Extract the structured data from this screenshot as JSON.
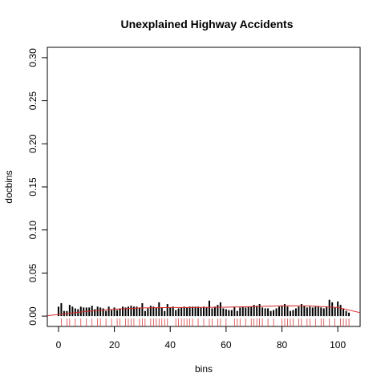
{
  "chart_data": {
    "type": "bar",
    "title": "Unexplained Highway Accidents",
    "xlabel": "bins",
    "ylabel": "docbins",
    "xlim": [
      -4,
      108
    ],
    "ylim": [
      -0.012,
      0.312
    ],
    "x_ticks": [
      0,
      20,
      40,
      60,
      80,
      100
    ],
    "y_ticks": [
      0.0,
      0.05,
      0.1,
      0.15,
      0.2,
      0.25,
      0.3
    ],
    "y_tick_labels": [
      "0.00",
      "0.05",
      "0.10",
      "0.15",
      "0.20",
      "0.25",
      "0.30"
    ],
    "grid": false,
    "bar_color": "#000000",
    "curve_color": "#d62728",
    "rug_color": "#d62728",
    "bars": {
      "x": [
        0,
        1,
        2,
        3,
        4,
        5,
        6,
        7,
        8,
        9,
        10,
        11,
        12,
        13,
        14,
        15,
        16,
        17,
        18,
        19,
        20,
        21,
        22,
        23,
        24,
        25,
        26,
        27,
        28,
        29,
        30,
        31,
        32,
        33,
        34,
        35,
        36,
        37,
        38,
        39,
        40,
        41,
        42,
        43,
        44,
        45,
        46,
        47,
        48,
        49,
        50,
        51,
        52,
        53,
        54,
        55,
        56,
        57,
        58,
        59,
        60,
        61,
        62,
        63,
        64,
        65,
        66,
        67,
        68,
        69,
        70,
        71,
        72,
        73,
        74,
        75,
        76,
        77,
        78,
        79,
        80,
        81,
        82,
        83,
        84,
        85,
        86,
        87,
        88,
        89,
        90,
        91,
        92,
        93,
        94,
        95,
        96,
        97,
        98,
        99,
        100,
        101,
        102,
        103,
        104
      ],
      "y": [
        0.011,
        0.015,
        0.006,
        0.006,
        0.013,
        0.011,
        0.009,
        0.008,
        0.011,
        0.01,
        0.01,
        0.01,
        0.012,
        0.008,
        0.011,
        0.01,
        0.009,
        0.006,
        0.011,
        0.007,
        0.01,
        0.007,
        0.009,
        0.011,
        0.01,
        0.011,
        0.012,
        0.011,
        0.011,
        0.01,
        0.015,
        0.006,
        0.009,
        0.012,
        0.011,
        0.01,
        0.016,
        0.01,
        0.006,
        0.014,
        0.01,
        0.011,
        0.007,
        0.009,
        0.01,
        0.011,
        0.01,
        0.011,
        0.011,
        0.011,
        0.011,
        0.01,
        0.011,
        0.01,
        0.018,
        0.009,
        0.011,
        0.013,
        0.016,
        0.009,
        0.008,
        0.007,
        0.007,
        0.011,
        0.006,
        0.01,
        0.011,
        0.01,
        0.011,
        0.011,
        0.013,
        0.012,
        0.014,
        0.01,
        0.009,
        0.009,
        0.006,
        0.007,
        0.009,
        0.011,
        0.012,
        0.014,
        0.011,
        0.006,
        0.007,
        0.009,
        0.011,
        0.014,
        0.012,
        0.01,
        0.011,
        0.01,
        0.011,
        0.011,
        0.01,
        0.009,
        0.011,
        0.019,
        0.016,
        0.01,
        0.017,
        0.013,
        0.009,
        0.006,
        0.004
      ]
    },
    "curve": {
      "x": [
        -4,
        10,
        20,
        30,
        40,
        50,
        60,
        70,
        80,
        90,
        100,
        108
      ],
      "y": [
        0.0005,
        0.0055,
        0.008,
        0.0095,
        0.01,
        0.01,
        0.0103,
        0.011,
        0.012,
        0.0118,
        0.01,
        0.004
      ]
    },
    "rug": {
      "x": [
        1,
        3,
        4,
        6,
        8,
        10,
        12,
        14,
        15,
        17,
        19,
        21,
        22,
        24,
        25,
        26,
        27,
        29,
        30,
        31,
        33,
        34,
        35,
        36,
        37,
        38,
        39,
        42,
        43,
        44,
        45,
        46,
        47,
        48,
        50,
        52,
        54,
        55,
        57,
        58,
        60,
        63,
        64,
        65,
        67,
        69,
        70,
        71,
        72,
        73,
        75,
        77,
        80,
        81,
        82,
        83,
        84,
        86,
        87,
        89,
        90,
        92,
        94,
        95,
        97,
        99,
        101,
        102,
        103,
        104
      ]
    }
  }
}
